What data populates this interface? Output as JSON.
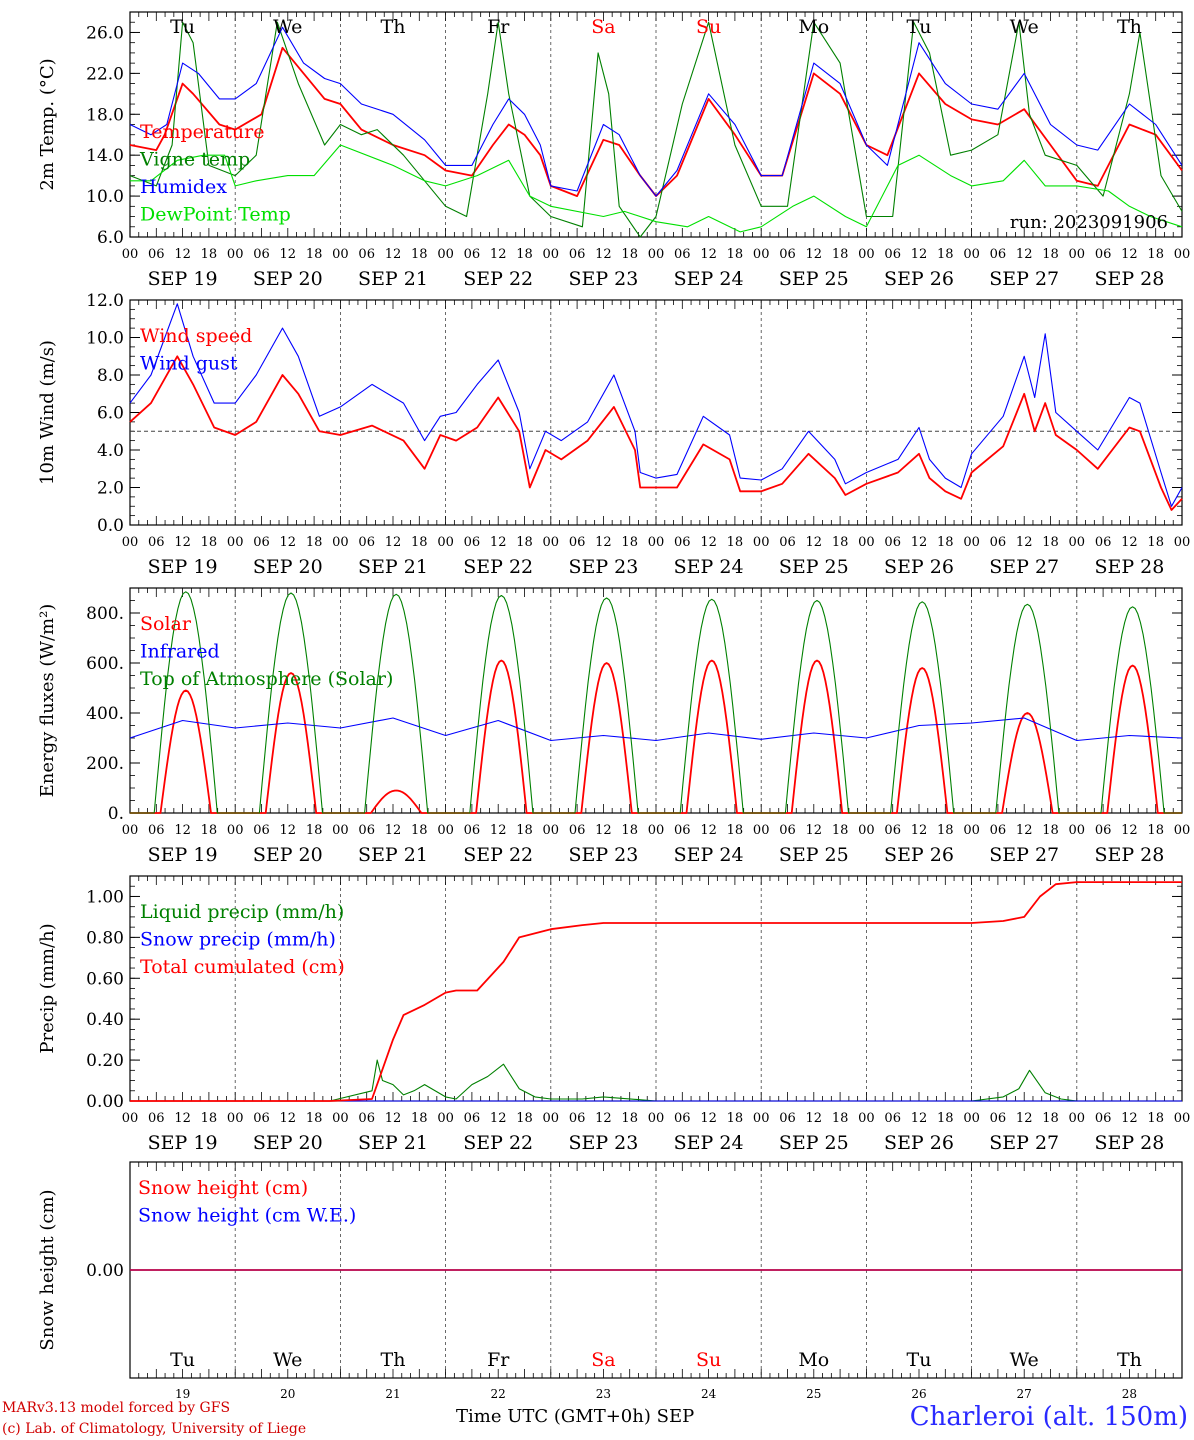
{
  "days": {
    "names": [
      "Tu",
      "We",
      "Th",
      "Fr",
      "Sa",
      "Su",
      "Mo",
      "Tu",
      "We",
      "Th"
    ],
    "weekend_flags": [
      false,
      false,
      false,
      false,
      true,
      true,
      false,
      false,
      false,
      false
    ],
    "dates": [
      "SEP 19",
      "SEP 20",
      "SEP 21",
      "SEP 22",
      "SEP 23",
      "SEP 24",
      "SEP 25",
      "SEP 26",
      "SEP 27",
      "SEP 28"
    ],
    "day_numbers": [
      "19",
      "20",
      "21",
      "22",
      "23",
      "24",
      "25",
      "26",
      "27",
      "28"
    ],
    "hour_labels": [
      "00",
      "06",
      "12",
      "18"
    ],
    "final_hour_label": "00"
  },
  "colors": {
    "red": "#ff0000",
    "dark_green": "#008000",
    "blue": "#0000ff",
    "light_green": "#00e000",
    "purple": "#800080",
    "weekend": "#ff0000"
  },
  "footer": {
    "model": "MARv3.13 model forced by GFS",
    "lab": "(c) Lab. of Climatology, University of Liege",
    "axis_title": "Time UTC (GMT+0h)",
    "month": "SEP",
    "station": "Charleroi (alt. 150m)"
  },
  "chart_data": [
    {
      "type": "line",
      "ylabel": "2m Temp. (°C)",
      "ylim": [
        6.0,
        28.0
      ],
      "yticks": [
        "6.0",
        "10.0",
        "14.0",
        "18.0",
        "22.0",
        "26.0"
      ],
      "annotation": "run: 2023091906",
      "x_unit": "days since 2023-09-19 00 UTC",
      "series": [
        {
          "name": "Temperature",
          "color_key": "red",
          "x": [
            0,
            0.25,
            0.33,
            0.5,
            0.6,
            0.85,
            1.0,
            1.25,
            1.45,
            1.65,
            1.85,
            2.0,
            2.2,
            2.5,
            2.8,
            3.0,
            3.25,
            3.45,
            3.6,
            3.75,
            3.9,
            4.0,
            4.25,
            4.5,
            4.65,
            4.85,
            5.0,
            5.2,
            5.5,
            5.75,
            6.0,
            6.2,
            6.5,
            6.75,
            7.0,
            7.2,
            7.5,
            7.75,
            8.0,
            8.25,
            8.5,
            8.75,
            9.0,
            9.2,
            9.5,
            9.75,
            10.0
          ],
          "y": [
            15,
            14.5,
            16,
            21,
            20,
            17,
            16.5,
            18,
            24.5,
            22,
            19.5,
            19,
            16.5,
            15,
            14,
            12.5,
            12,
            15,
            17,
            16,
            14,
            11,
            10,
            15.5,
            15,
            12,
            10,
            12,
            19.5,
            16,
            12,
            12,
            22,
            20,
            15,
            14,
            22,
            19,
            17.5,
            17,
            18.5,
            15,
            11.5,
            11,
            17,
            16,
            12.5
          ]
        },
        {
          "name": "Vigne temp",
          "color_key": "dark_green",
          "x": [
            0,
            0.25,
            0.4,
            0.5,
            0.6,
            0.75,
            1.0,
            1.2,
            1.4,
            1.6,
            1.85,
            2.0,
            2.2,
            2.35,
            2.6,
            3.0,
            3.2,
            3.4,
            3.5,
            3.6,
            3.8,
            4.0,
            4.3,
            4.45,
            4.55,
            4.65,
            4.85,
            5.0,
            5.25,
            5.5,
            5.75,
            6.0,
            6.25,
            6.5,
            6.75,
            7.0,
            7.25,
            7.45,
            7.6,
            7.8,
            8.0,
            8.25,
            8.45,
            8.55,
            8.7,
            9.0,
            9.25,
            9.5,
            9.6,
            9.8,
            10.0
          ],
          "y": [
            12,
            11,
            15,
            27,
            25,
            13,
            12,
            14,
            27,
            21,
            15,
            17,
            16,
            16.5,
            14,
            9,
            8,
            20,
            27,
            20,
            10,
            8,
            7,
            24,
            20,
            9,
            6,
            8,
            19,
            27,
            15,
            9,
            9,
            27,
            23,
            8,
            8,
            27,
            24,
            14,
            14.5,
            16,
            27,
            18,
            14,
            13,
            10,
            20,
            26,
            12,
            8.5
          ]
        },
        {
          "name": "Humidex",
          "color_key": "blue",
          "x": [
            0,
            0.2,
            0.35,
            0.5,
            0.65,
            0.85,
            1.0,
            1.2,
            1.45,
            1.65,
            1.85,
            2.0,
            2.2,
            2.5,
            2.8,
            3.0,
            3.25,
            3.45,
            3.6,
            3.75,
            3.9,
            4.0,
            4.25,
            4.5,
            4.65,
            4.85,
            5.0,
            5.2,
            5.5,
            5.75,
            6.0,
            6.2,
            6.5,
            6.75,
            7.0,
            7.2,
            7.5,
            7.75,
            8.0,
            8.25,
            8.5,
            8.75,
            9.0,
            9.2,
            9.5,
            9.75,
            10.0
          ],
          "y": [
            17,
            16,
            17,
            23,
            22,
            19.5,
            19.5,
            21,
            26.5,
            23,
            21.5,
            21,
            19,
            18,
            15.5,
            13,
            13,
            17,
            19.5,
            18,
            15,
            11,
            10.5,
            17,
            16,
            12,
            10,
            12.5,
            20,
            17,
            12,
            12,
            23,
            21,
            15,
            13,
            25,
            21,
            19,
            18.5,
            22,
            17,
            15,
            14.5,
            19,
            17,
            13
          ]
        },
        {
          "name": "DewPoint Temp",
          "color_key": "light_green",
          "x": [
            0,
            0.2,
            0.45,
            0.7,
            0.9,
            1.0,
            1.2,
            1.5,
            1.75,
            2.0,
            2.5,
            2.8,
            3.0,
            3.3,
            3.6,
            3.8,
            4.0,
            4.5,
            4.7,
            5.0,
            5.3,
            5.5,
            5.8,
            6.0,
            6.3,
            6.5,
            6.8,
            7.0,
            7.3,
            7.5,
            7.8,
            8.0,
            8.3,
            8.5,
            8.7,
            9.0,
            9.3,
            9.5,
            9.7,
            10.0
          ],
          "y": [
            11.5,
            11.5,
            13.5,
            14,
            14,
            11,
            11.5,
            12,
            12,
            15,
            13,
            11.5,
            11,
            12,
            13.5,
            10,
            9,
            8,
            8.5,
            7.5,
            7,
            8,
            6.5,
            7,
            9,
            10,
            8,
            7,
            13,
            14,
            12,
            11,
            11.5,
            13.5,
            11,
            11,
            10.5,
            9,
            8,
            7
          ]
        }
      ]
    },
    {
      "type": "line",
      "ylabel": "10m Wind (m/s)",
      "ylim": [
        0.0,
        12.0
      ],
      "yticks": [
        "0.0",
        "2.0",
        "4.0",
        "6.0",
        "8.0",
        "10.0",
        "12.0"
      ],
      "reference_line": 5.0,
      "x_unit": "days since 2023-09-19 00 UTC",
      "series": [
        {
          "name": "Wind speed",
          "color_key": "red",
          "x": [
            0,
            0.2,
            0.45,
            0.6,
            0.8,
            1.0,
            1.2,
            1.45,
            1.6,
            1.8,
            2.0,
            2.3,
            2.6,
            2.8,
            2.95,
            3.1,
            3.3,
            3.5,
            3.7,
            3.8,
            3.95,
            4.1,
            4.35,
            4.6,
            4.8,
            4.85,
            5.0,
            5.2,
            5.45,
            5.7,
            5.8,
            6.0,
            6.2,
            6.45,
            6.7,
            6.8,
            7.0,
            7.3,
            7.5,
            7.6,
            7.75,
            7.9,
            8.0,
            8.3,
            8.5,
            8.6,
            8.7,
            8.8,
            9.0,
            9.2,
            9.5,
            9.6,
            9.8,
            9.9,
            10.0
          ],
          "y": [
            5.5,
            6.5,
            9,
            7.5,
            5.2,
            4.8,
            5.5,
            8,
            7,
            5,
            4.8,
            5.3,
            4.5,
            3,
            4.8,
            4.5,
            5.2,
            6.8,
            5,
            2,
            4,
            3.5,
            4.5,
            6.3,
            4,
            2,
            2,
            2,
            4.3,
            3.5,
            1.8,
            1.8,
            2.2,
            3.8,
            2.5,
            1.6,
            2.2,
            2.8,
            3.8,
            2.5,
            1.8,
            1.4,
            2.8,
            4.2,
            7,
            5,
            6.5,
            4.8,
            4,
            3,
            5.2,
            5,
            2,
            0.8,
            1.4
          ]
        },
        {
          "name": "Wind gust",
          "color_key": "blue",
          "x": [
            0,
            0.2,
            0.45,
            0.6,
            0.8,
            1.0,
            1.2,
            1.45,
            1.6,
            1.8,
            2.0,
            2.3,
            2.6,
            2.8,
            2.95,
            3.1,
            3.3,
            3.5,
            3.7,
            3.8,
            3.95,
            4.1,
            4.35,
            4.6,
            4.8,
            4.85,
            5.0,
            5.2,
            5.45,
            5.7,
            5.8,
            6.0,
            6.2,
            6.45,
            6.7,
            6.8,
            7.0,
            7.3,
            7.5,
            7.6,
            7.75,
            7.9,
            8.0,
            8.3,
            8.5,
            8.6,
            8.7,
            8.8,
            9.0,
            9.2,
            9.5,
            9.6,
            9.8,
            9.9,
            10.0
          ],
          "y": [
            6.5,
            8,
            11.8,
            9,
            6.5,
            6.5,
            8,
            10.5,
            9,
            5.8,
            6.3,
            7.5,
            6.5,
            4.5,
            5.8,
            6,
            7.5,
            8.8,
            6,
            3,
            5,
            4.5,
            5.5,
            8,
            5,
            2.8,
            2.5,
            2.7,
            5.8,
            4.8,
            2.5,
            2.4,
            3,
            5,
            3.5,
            2.2,
            2.8,
            3.5,
            5.2,
            3.5,
            2.5,
            2,
            3.8,
            5.8,
            9,
            6.8,
            10.2,
            6,
            5,
            4,
            6.8,
            6.5,
            2.8,
            1,
            2
          ]
        }
      ]
    },
    {
      "type": "line",
      "ylabel": "Energy fluxes (W/m²)",
      "ylim": [
        0,
        900
      ],
      "yticks": [
        "0.",
        "200.",
        "400.",
        "600.",
        "800."
      ],
      "x_unit": "days since 2023-09-19 00 UTC",
      "series": [
        {
          "name": "Solar",
          "color_key": "red",
          "daily_peaks": [
            490,
            560,
            90,
            610,
            600,
            610,
            610,
            580,
            400,
            590
          ]
        },
        {
          "name": "Infrared",
          "color_key": "blue",
          "x": [
            0,
            0.5,
            1,
            1.5,
            2,
            2.5,
            3,
            3.5,
            4,
            4.5,
            5,
            5.5,
            6,
            6.5,
            7,
            7.5,
            8,
            8.5,
            9,
            9.5,
            10
          ],
          "y": [
            300,
            370,
            340,
            360,
            340,
            380,
            310,
            370,
            290,
            310,
            290,
            320,
            295,
            320,
            300,
            350,
            360,
            380,
            290,
            310,
            300
          ]
        },
        {
          "name": "Top of Atmosphere (Solar)",
          "color_key": "dark_green",
          "daily_peaks": [
            885,
            880,
            875,
            870,
            860,
            855,
            850,
            845,
            835,
            825
          ]
        }
      ]
    },
    {
      "type": "line",
      "ylabel": "Precip (mm/h)",
      "ylim": [
        0.0,
        1.1
      ],
      "yticks": [
        "0.00",
        "0.20",
        "0.40",
        "0.60",
        "0.80",
        "1.00"
      ],
      "x_unit": "days since 2023-09-19 00 UTC",
      "series": [
        {
          "name": "Liquid precip (mm/h)",
          "color_key": "dark_green",
          "x": [
            0,
            1.9,
            2.3,
            2.35,
            2.4,
            2.5,
            2.6,
            2.7,
            2.8,
            3.0,
            3.1,
            3.25,
            3.4,
            3.55,
            3.7,
            3.85,
            4.0,
            4.3,
            4.5,
            5.0,
            8.0,
            8.3,
            8.45,
            8.55,
            8.7,
            8.85,
            9.0,
            10.0
          ],
          "y": [
            0,
            0,
            0.05,
            0.2,
            0.1,
            0.08,
            0.03,
            0.05,
            0.08,
            0.02,
            0.01,
            0.08,
            0.12,
            0.18,
            0.06,
            0.02,
            0.01,
            0.01,
            0.02,
            0,
            0,
            0.02,
            0.06,
            0.15,
            0.04,
            0.01,
            0,
            0
          ]
        },
        {
          "name": "Snow precip (mm/h)",
          "color_key": "blue",
          "x": [
            0,
            10
          ],
          "y": [
            0,
            0
          ]
        },
        {
          "name": "Total cumulated (cm)",
          "color_key": "red",
          "x": [
            0,
            1.9,
            2.3,
            2.5,
            2.6,
            2.8,
            3.0,
            3.1,
            3.3,
            3.55,
            3.7,
            4.0,
            4.3,
            4.5,
            8.0,
            8.3,
            8.5,
            8.65,
            8.8,
            9.0,
            10.0
          ],
          "y": [
            0,
            0,
            0.01,
            0.3,
            0.42,
            0.47,
            0.53,
            0.54,
            0.54,
            0.68,
            0.8,
            0.84,
            0.86,
            0.87,
            0.87,
            0.88,
            0.9,
            1.0,
            1.06,
            1.07,
            1.07
          ]
        }
      ]
    },
    {
      "type": "line",
      "ylabel": "Snow height (cm)",
      "yticks": [
        "0.00"
      ],
      "x_unit": "days since 2023-09-19 00 UTC",
      "series": [
        {
          "name": "Snow height (cm)",
          "color_key": "red",
          "x": [
            0,
            10
          ],
          "y": [
            0,
            0
          ]
        },
        {
          "name": "Snow height (cm W.E.)",
          "color_key": "blue",
          "x": [
            0,
            10
          ],
          "y": [
            0,
            0
          ]
        }
      ]
    }
  ]
}
